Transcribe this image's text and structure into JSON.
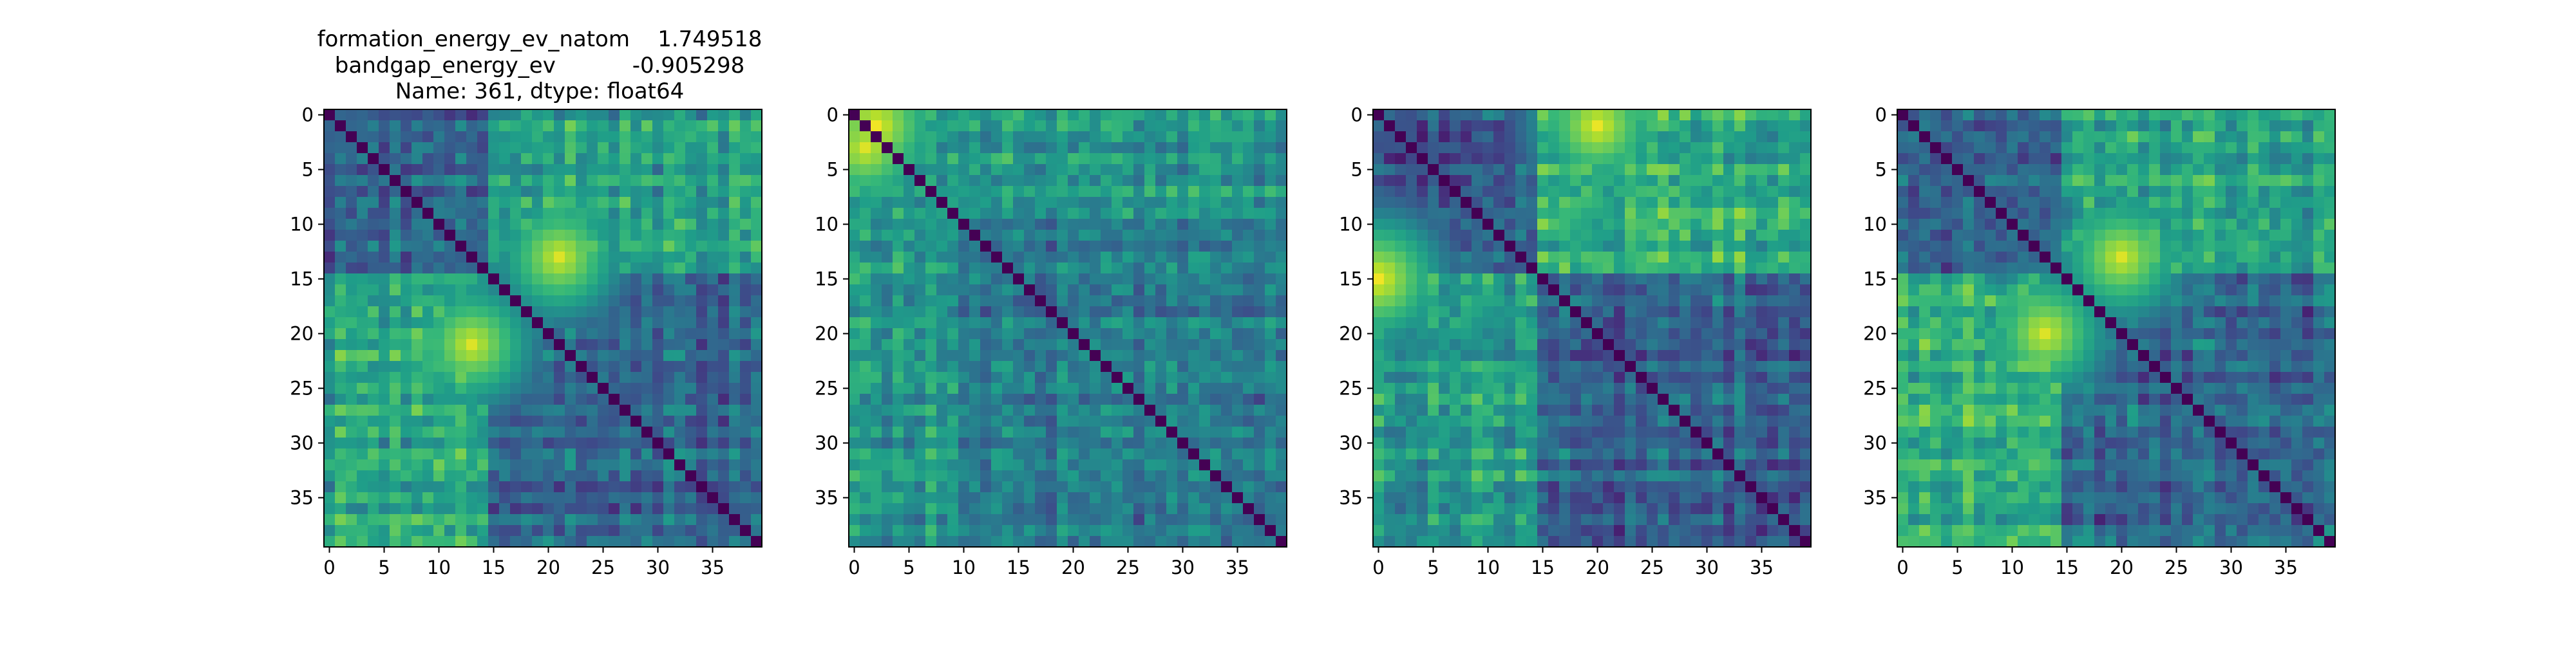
{
  "title_lines": [
    "formation_energy_ev_natom    1.749518",
    "bandgap_energy_ev           -0.905298",
    "Name: 361, dtype: float64"
  ],
  "chart_data": [
    {
      "type": "heatmap",
      "size": 40,
      "colormap": "viridis",
      "x_ticks": [
        0,
        5,
        10,
        15,
        20,
        25,
        30,
        35
      ],
      "y_ticks": [
        0,
        5,
        10,
        15,
        20,
        25,
        30,
        35
      ],
      "diagonal": 0.0,
      "blocks": [
        {
          "rows": [
            0,
            14
          ],
          "cols": [
            0,
            14
          ],
          "level": 0.28
        },
        {
          "rows": [
            15,
            39
          ],
          "cols": [
            15,
            39
          ],
          "level": 0.28
        },
        {
          "rows": [
            0,
            14
          ],
          "cols": [
            15,
            39
          ],
          "level": 0.52
        },
        {
          "rows": [
            15,
            39
          ],
          "cols": [
            0,
            14
          ],
          "level": 0.55
        }
      ],
      "hotspots": [
        {
          "row": 13,
          "col": 21,
          "level": 0.95
        },
        {
          "row": 21,
          "col": 13,
          "level": 0.95
        }
      ]
    },
    {
      "type": "heatmap",
      "size": 40,
      "colormap": "viridis",
      "x_ticks": [
        0,
        5,
        10,
        15,
        20,
        25,
        30,
        35
      ],
      "y_ticks": [
        0,
        5,
        10,
        15,
        20,
        25,
        30,
        35
      ],
      "diagonal": 0.0,
      "blocks": [
        {
          "rows": [
            0,
            9
          ],
          "cols": [
            0,
            9
          ],
          "level": 0.55
        },
        {
          "rows": [
            10,
            39
          ],
          "cols": [
            10,
            39
          ],
          "level": 0.35
        },
        {
          "rows": [
            0,
            9
          ],
          "cols": [
            10,
            39
          ],
          "level": 0.5
        },
        {
          "rows": [
            10,
            39
          ],
          "cols": [
            0,
            9
          ],
          "level": 0.5
        }
      ],
      "hotspots": [
        {
          "row": 1,
          "col": 2,
          "level": 0.98
        },
        {
          "row": 3,
          "col": 1,
          "level": 0.95
        }
      ]
    },
    {
      "type": "heatmap",
      "size": 40,
      "colormap": "viridis",
      "x_ticks": [
        0,
        5,
        10,
        15,
        20,
        25,
        30,
        35
      ],
      "y_ticks": [
        0,
        5,
        10,
        15,
        20,
        25,
        30,
        35
      ],
      "diagonal": 0.0,
      "blocks": [
        {
          "rows": [
            0,
            14
          ],
          "cols": [
            0,
            14
          ],
          "level": 0.25
        },
        {
          "rows": [
            15,
            39
          ],
          "cols": [
            15,
            39
          ],
          "level": 0.3
        },
        {
          "rows": [
            0,
            14
          ],
          "cols": [
            15,
            39
          ],
          "level": 0.6
        },
        {
          "rows": [
            15,
            39
          ],
          "cols": [
            0,
            14
          ],
          "level": 0.52
        }
      ],
      "hotspots": [
        {
          "row": 1,
          "col": 20,
          "level": 0.97
        },
        {
          "row": 15,
          "col": 0,
          "level": 0.98
        }
      ]
    },
    {
      "type": "heatmap",
      "size": 40,
      "colormap": "viridis",
      "x_ticks": [
        0,
        5,
        10,
        15,
        20,
        25,
        30,
        35
      ],
      "y_ticks": [
        0,
        5,
        10,
        15,
        20,
        25,
        30,
        35
      ],
      "diagonal": 0.0,
      "blocks": [
        {
          "rows": [
            0,
            14
          ],
          "cols": [
            0,
            14
          ],
          "level": 0.28
        },
        {
          "rows": [
            15,
            39
          ],
          "cols": [
            15,
            39
          ],
          "level": 0.3
        },
        {
          "rows": [
            0,
            14
          ],
          "cols": [
            15,
            39
          ],
          "level": 0.55
        },
        {
          "rows": [
            15,
            39
          ],
          "cols": [
            0,
            14
          ],
          "level": 0.6
        }
      ],
      "hotspots": [
        {
          "row": 13,
          "col": 20,
          "level": 0.95
        },
        {
          "row": 20,
          "col": 13,
          "level": 0.95
        }
      ]
    }
  ]
}
